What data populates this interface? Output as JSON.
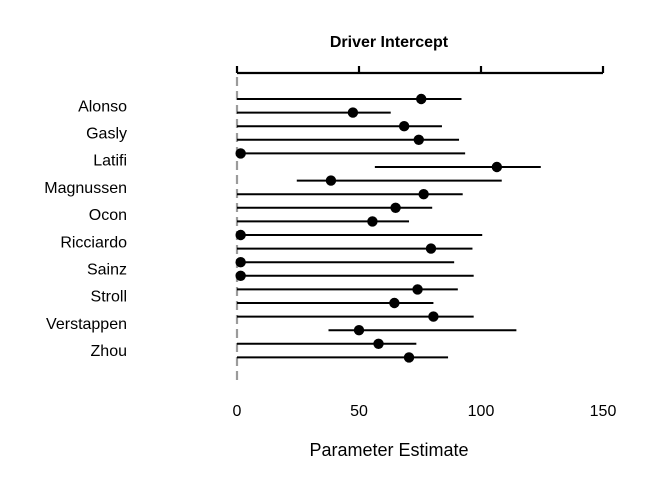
{
  "chart_data": {
    "type": "forest",
    "title": "Driver Intercept",
    "xlabel": "Parameter Estimate",
    "xlim": [
      0,
      150
    ],
    "x_ticks": [
      0,
      50,
      100,
      150
    ],
    "reference_line": 0,
    "y_labels": [
      "Alonso",
      "Gasly",
      "Latifi",
      "Magnussen",
      "Ocon",
      "Ricciardo",
      "Sainz",
      "Stroll",
      "Verstappen",
      "Zhou"
    ],
    "rows": [
      {
        "estimate": 75.5,
        "lower": 0,
        "upper": 92
      },
      {
        "estimate": 47.5,
        "lower": 0,
        "upper": 63
      },
      {
        "estimate": 68.5,
        "lower": 0,
        "upper": 84
      },
      {
        "estimate": 74.5,
        "lower": 0,
        "upper": 91
      },
      {
        "estimate": 1.5,
        "lower": 0,
        "upper": 93.5
      },
      {
        "estimate": 106.5,
        "lower": 56.5,
        "upper": 124.5
      },
      {
        "estimate": 38.5,
        "lower": 24.5,
        "upper": 108.5
      },
      {
        "estimate": 76.5,
        "lower": 0,
        "upper": 92.5
      },
      {
        "estimate": 65,
        "lower": 0,
        "upper": 80
      },
      {
        "estimate": 55.5,
        "lower": 0,
        "upper": 70.5
      },
      {
        "estimate": 1.5,
        "lower": 0,
        "upper": 100.5
      },
      {
        "estimate": 79.5,
        "lower": 0,
        "upper": 96.5
      },
      {
        "estimate": 1.5,
        "lower": 0,
        "upper": 89
      },
      {
        "estimate": 1.5,
        "lower": 0,
        "upper": 97
      },
      {
        "estimate": 74,
        "lower": 0,
        "upper": 90.5
      },
      {
        "estimate": 64.5,
        "lower": 0,
        "upper": 80.5
      },
      {
        "estimate": 80.5,
        "lower": 0,
        "upper": 97
      },
      {
        "estimate": 50,
        "lower": 37.5,
        "upper": 114.5
      },
      {
        "estimate": 58,
        "lower": 0,
        "upper": 73.5
      },
      {
        "estimate": 70.5,
        "lower": 0,
        "upper": 86.5
      }
    ],
    "grid": false,
    "colors": {
      "mark": "#000000",
      "reference": "#9b9b9b"
    }
  }
}
